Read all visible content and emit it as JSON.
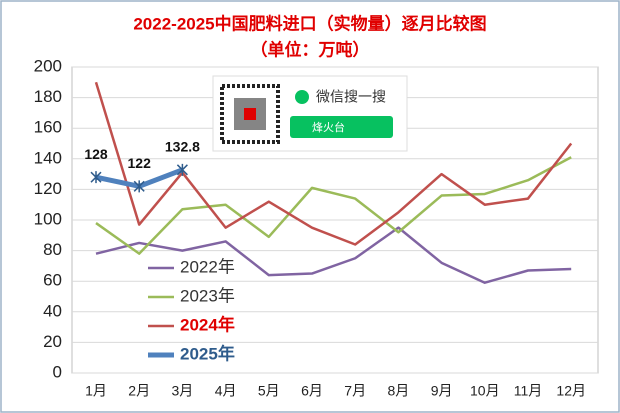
{
  "chart_data": {
    "type": "line",
    "title": "2022-2025中国肥料进口（实物量）逐月比较图",
    "subtitle": "（单位：万吨）",
    "categories": [
      "1月",
      "2月",
      "3月",
      "4月",
      "5月",
      "6月",
      "7月",
      "8月",
      "9月",
      "10月",
      "11月",
      "12月"
    ],
    "series": [
      {
        "name": "2022年",
        "color": "#8064a2",
        "values": [
          78,
          85,
          80,
          86,
          64,
          65,
          75,
          95,
          72,
          59,
          67,
          68
        ]
      },
      {
        "name": "2023年",
        "color": "#9bbb59",
        "values": [
          98,
          78,
          107,
          110,
          89,
          121,
          114,
          92,
          116,
          117,
          126,
          141
        ]
      },
      {
        "name": "2024年",
        "color": "#c0504d",
        "values": [
          190,
          97,
          131,
          95,
          112,
          95,
          84,
          105,
          130,
          110,
          114,
          150
        ]
      },
      {
        "name": "2025年",
        "color": "#4f81bd",
        "values": [
          128,
          122,
          132.8,
          null,
          null,
          null,
          null,
          null,
          null,
          null,
          null,
          null
        ]
      }
    ],
    "ylim": [
      0,
      200
    ],
    "yticks": [
      0,
      20,
      40,
      60,
      80,
      100,
      120,
      140,
      160,
      180,
      200
    ],
    "grid": true,
    "legend": "lower left"
  },
  "watermark": {
    "text": "微信搜一搜",
    "search": "烽火台"
  }
}
